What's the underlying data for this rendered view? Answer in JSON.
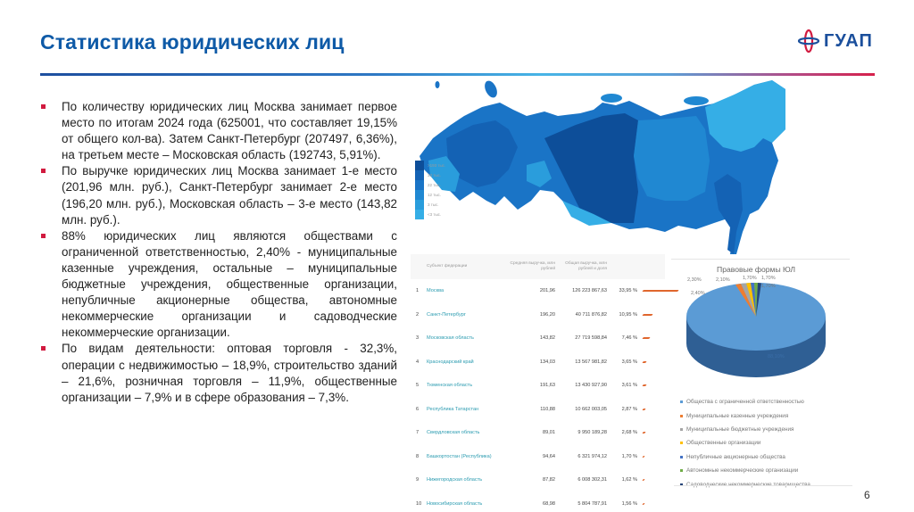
{
  "header": {
    "title": "Статистика юридических лиц",
    "logo_text": "ГУАП"
  },
  "bullets": [
    "По количеству юридических лиц Москва занимает первое место по итогам 2024 года (625001, что составляет 19,15% от общего кол-ва). Затем Санкт-Петербург (207497, 6,36%), на третьем месте – Московская область (192743, 5,91%).",
    "По выручке юридических лиц Москва занимает 1-е место (201,96 млн. руб.), Санкт-Петербург занимает 2-е место (196,20 млн. руб.), Московская область – 3-е место (143,82 млн. руб.).",
    "88% юридических лиц являются обществами с ограниченной ответственностью, 2,40% - муниципальные казенные учреждения, остальные – муниципальные бюджетные учреждения, общественные организации, непубличные акционерные общества, автономные некоммерческие организации и садоводческие некоммерческие организации.",
    "По видам деятельности: оптовая торговля - 32,3%, операции с недвижимостью – 18,9%, строительство зданий – 21,6%, розничная торговля – 11,9%, общественные организации – 7,9% и в сфере образования – 7,3%."
  ],
  "map": {
    "legend": [
      {
        "label": ">193 тыс.",
        "color": "#0d4e99"
      },
      {
        "label": "33 тыс.",
        "color": "#1462b4"
      },
      {
        "label": "22 тыс.",
        "color": "#1a74c6"
      },
      {
        "label": "12 тыс.",
        "color": "#2088d2"
      },
      {
        "label": "3 тыс.",
        "color": "#2a9ddc"
      },
      {
        "label": "<3 тыс.",
        "color": "#35aee6"
      }
    ]
  },
  "table": {
    "headers": [
      "",
      "Субъект федерации",
      "Средняя выручка, млн рублей",
      "Общая выручка, млн рублей и доля",
      "",
      ""
    ],
    "rows": [
      {
        "rank": "1",
        "region": "Москва",
        "avg": "201,96",
        "total": "126 223 867,63",
        "share": "33,95 %",
        "bar": 40
      },
      {
        "rank": "2",
        "region": "Санкт-Петербург",
        "avg": "196,20",
        "total": "40 711 876,82",
        "share": "10,95 %",
        "bar": 11
      },
      {
        "rank": "3",
        "region": "Московская область",
        "avg": "143,82",
        "total": "27 719 598,84",
        "share": "7,46 %",
        "bar": 8
      },
      {
        "rank": "4",
        "region": "Краснодарский край",
        "avg": "134,03",
        "total": "13 567 981,82",
        "share": "3,65 %",
        "bar": 4
      },
      {
        "rank": "5",
        "region": "Тюменская область",
        "avg": "191,63",
        "total": "13 430 927,90",
        "share": "3,61 %",
        "bar": 4
      },
      {
        "rank": "6",
        "region": "Республика Татарстан",
        "avg": "110,88",
        "total": "10 662 003,05",
        "share": "2,87 %",
        "bar": 3
      },
      {
        "rank": "7",
        "region": "Свердловская область",
        "avg": "89,01",
        "total": "9 950 189,28",
        "share": "2,68 %",
        "bar": 3
      },
      {
        "rank": "8",
        "region": "Башкортостан (Республика)",
        "avg": "94,64",
        "total": "6 321 974,12",
        "share": "1,70 %",
        "bar": 2
      },
      {
        "rank": "9",
        "region": "Нижегородская область",
        "avg": "87,82",
        "total": "6 008 302,31",
        "share": "1,62 %",
        "bar": 2
      },
      {
        "rank": "10",
        "region": "Новосибирская область",
        "avg": "68,98",
        "total": "5 804 787,91",
        "share": "1,56 %",
        "bar": 2
      }
    ]
  },
  "chart_data": {
    "type": "pie",
    "title": "Правовые формы ЮЛ",
    "categories": [
      "Общества с ограниченной ответственностью",
      "Муниципальные казенные учреждения",
      "Муниципальные бюджетные учреждения",
      "Общественные организации",
      "Непубличные акционерные общества",
      "Автономные некоммерческие организации",
      "Садоводческие некоммерческие товарищества"
    ],
    "values": [
      88.1,
      2.4,
      2.3,
      2.1,
      1.7,
      1.7,
      1.7
    ],
    "labels": [
      "88,10%",
      "2,40%",
      "2,30%",
      "2,10%",
      "1,70%",
      "1,70%",
      "1,70%"
    ],
    "colors": [
      "#5b9bd5",
      "#ed7d31",
      "#a5a5a5",
      "#ffc000",
      "#4472c4",
      "#70ad47",
      "#264478"
    ],
    "legend_position": "bottom",
    "style": "3d"
  },
  "footer": {
    "page_number": "6"
  }
}
